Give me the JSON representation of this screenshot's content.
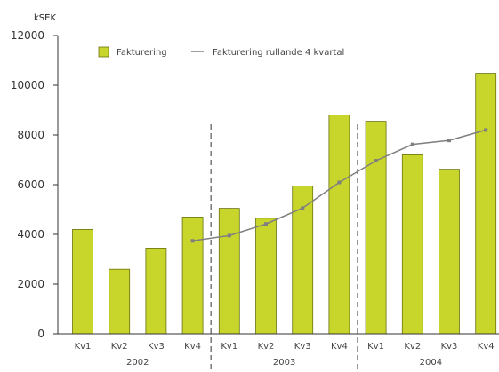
{
  "chart_data": {
    "type": "bar",
    "unit_label": "kSEK",
    "ylim": [
      0,
      12000
    ],
    "yticks": [
      0,
      2000,
      4000,
      6000,
      8000,
      10000,
      12000
    ],
    "categories": [
      "Kv1",
      "Kv2",
      "Kv3",
      "Kv4",
      "Kv1",
      "Kv2",
      "Kv3",
      "Kv4",
      "Kv1",
      "Kv2",
      "Kv3",
      "Kv4"
    ],
    "groups": [
      {
        "label": "2002",
        "start": 0,
        "end": 3
      },
      {
        "label": "2003",
        "start": 4,
        "end": 7
      },
      {
        "label": "2004",
        "start": 8,
        "end": 11
      }
    ],
    "series": [
      {
        "name": "Fakturering",
        "type": "bar",
        "color": "#c8d62b",
        "values": [
          4200,
          2600,
          3450,
          4700,
          5050,
          4650,
          5950,
          8800,
          8550,
          7200,
          6620,
          10480
        ]
      },
      {
        "name": "Fakturering rullande 4 kvartal",
        "type": "line",
        "color": "#7f7f7f",
        "values": [
          null,
          null,
          null,
          3740,
          3950,
          4420,
          5060,
          6090,
          6960,
          7620,
          7780,
          8200
        ]
      }
    ],
    "legend": "top",
    "grid": false,
    "separators": "dashed vertical lines between years"
  }
}
